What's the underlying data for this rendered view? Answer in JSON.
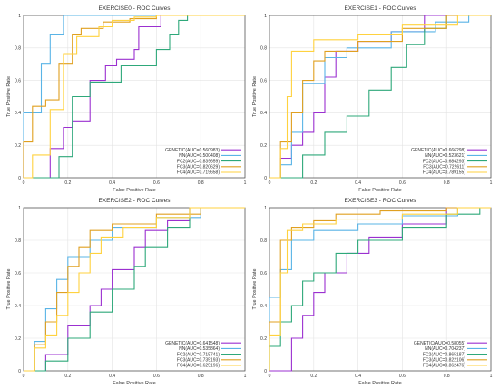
{
  "figure": {
    "background": "#ffffff"
  },
  "series_style": {
    "GENETIC": "#9b30d0",
    "NN": "#5ab4e6",
    "FC2": "#2ea87a",
    "FC3": "#e0a020",
    "FC4": "#ffd23f"
  },
  "chart_data": [
    {
      "type": "line",
      "title": "EXERCISE0 - ROC Curves",
      "xlabel": "False Positive Rate",
      "ylabel": "True Positive Rate",
      "xlim": [
        0,
        1
      ],
      "ylim": [
        0,
        1
      ],
      "xticks": [
        "0",
        "0.2",
        "0.4",
        "0.6",
        "0.8",
        "1"
      ],
      "yticks": [
        "0",
        "0.2",
        "0.4",
        "0.6",
        "0.8",
        "1"
      ],
      "grid": true,
      "legend_position": "bottom-right",
      "series": [
        {
          "name": "GENETIC(AUC=0.560983)",
          "x": [
            0,
            0.12,
            0.12,
            0.18,
            0.18,
            0.22,
            0.22,
            0.3,
            0.3,
            0.37,
            0.37,
            0.42,
            0.42,
            0.5,
            0.5,
            0.52,
            0.52,
            0.62,
            0.62,
            1
          ],
          "y": [
            0,
            0,
            0.18,
            0.18,
            0.31,
            0.31,
            0.35,
            0.35,
            0.6,
            0.6,
            0.69,
            0.69,
            0.73,
            0.73,
            0.79,
            0.79,
            0.93,
            0.93,
            1,
            1
          ]
        },
        {
          "name": "NN(AUC=0.500408)",
          "x": [
            0,
            0,
            0.08,
            0.08,
            0.12,
            0.12,
            0.18,
            0.18,
            1
          ],
          "y": [
            0,
            0.4,
            0.4,
            0.7,
            0.7,
            0.88,
            0.88,
            1,
            1
          ]
        },
        {
          "name": "FC2(AUC=0.839659)",
          "x": [
            0,
            0.16,
            0.16,
            0.22,
            0.22,
            0.3,
            0.3,
            0.44,
            0.44,
            0.6,
            0.6,
            0.66,
            0.66,
            0.7,
            0.7,
            0.74,
            0.74,
            1
          ],
          "y": [
            0,
            0,
            0.13,
            0.13,
            0.5,
            0.5,
            0.59,
            0.59,
            0.69,
            0.69,
            0.79,
            0.79,
            0.88,
            0.88,
            0.97,
            0.97,
            1,
            1
          ]
        },
        {
          "name": "FC3(AUC=0.820629)",
          "x": [
            0,
            0,
            0.04,
            0.04,
            0.1,
            0.1,
            0.16,
            0.16,
            0.22,
            0.22,
            0.26,
            0.26,
            0.36,
            0.36,
            0.48,
            0.48,
            0.6,
            0.6,
            1
          ],
          "y": [
            0,
            0.22,
            0.22,
            0.44,
            0.44,
            0.48,
            0.48,
            0.7,
            0.7,
            0.88,
            0.88,
            0.92,
            0.92,
            0.96,
            0.96,
            0.98,
            0.98,
            1,
            1
          ]
        },
        {
          "name": "FC4(AUC=0.719658)",
          "x": [
            0,
            0.04,
            0.04,
            0.12,
            0.12,
            0.18,
            0.18,
            0.24,
            0.24,
            0.34,
            0.34,
            0.4,
            0.4,
            0.5,
            0.5,
            0.6,
            0.6,
            1
          ],
          "y": [
            0,
            0,
            0.14,
            0.14,
            0.42,
            0.42,
            0.76,
            0.76,
            0.87,
            0.87,
            0.93,
            0.93,
            0.97,
            0.97,
            0.99,
            0.99,
            1,
            1
          ]
        }
      ]
    },
    {
      "type": "line",
      "title": "EXERCISE1 - ROC Curves",
      "xlabel": "False Positive Rate",
      "ylabel": "True Positive Rate",
      "xlim": [
        0,
        1
      ],
      "ylim": [
        0,
        1
      ],
      "xticks": [
        "0",
        "0.2",
        "0.4",
        "0.6",
        "0.8",
        "1"
      ],
      "yticks": [
        "0",
        "0.2",
        "0.4",
        "0.6",
        "0.8",
        "1"
      ],
      "grid": true,
      "legend_position": "bottom-right",
      "series": [
        {
          "name": "GENETIC(AUC=0.666298)",
          "x": [
            0,
            0.05,
            0.05,
            0.1,
            0.1,
            0.15,
            0.15,
            0.2,
            0.2,
            0.25,
            0.25,
            0.3,
            0.3,
            0.4,
            0.4,
            0.55,
            0.55,
            0.7,
            0.7,
            1
          ],
          "y": [
            0,
            0,
            0.12,
            0.12,
            0.2,
            0.2,
            0.28,
            0.28,
            0.4,
            0.4,
            0.62,
            0.62,
            0.78,
            0.78,
            0.84,
            0.84,
            0.9,
            0.9,
            1,
            1
          ]
        },
        {
          "name": "NN(AUC=0.523621)",
          "x": [
            0,
            0.05,
            0.05,
            0.1,
            0.1,
            0.15,
            0.15,
            0.25,
            0.25,
            0.35,
            0.35,
            0.55,
            0.55,
            0.75,
            0.75,
            0.9,
            0.9,
            1
          ],
          "y": [
            0,
            0,
            0.08,
            0.08,
            0.28,
            0.28,
            0.58,
            0.58,
            0.74,
            0.74,
            0.8,
            0.8,
            0.9,
            0.9,
            0.96,
            0.96,
            1,
            1
          ]
        },
        {
          "name": "FC2(AUC=0.684293)",
          "x": [
            0,
            0.15,
            0.15,
            0.25,
            0.25,
            0.35,
            0.35,
            0.45,
            0.45,
            0.55,
            0.55,
            0.62,
            0.62,
            0.7,
            0.7,
            0.8,
            0.8,
            1
          ],
          "y": [
            0,
            0,
            0.14,
            0.14,
            0.28,
            0.28,
            0.38,
            0.38,
            0.54,
            0.54,
            0.68,
            0.68,
            0.82,
            0.82,
            0.92,
            0.92,
            1,
            1
          ]
        },
        {
          "name": "FC3(AUC=0.722611)",
          "x": [
            0,
            0.05,
            0.05,
            0.1,
            0.1,
            0.15,
            0.15,
            0.2,
            0.2,
            0.25,
            0.25,
            0.4,
            0.4,
            0.6,
            0.6,
            0.8,
            0.8,
            1
          ],
          "y": [
            0,
            0,
            0.22,
            0.22,
            0.4,
            0.4,
            0.6,
            0.6,
            0.72,
            0.72,
            0.78,
            0.78,
            0.84,
            0.84,
            0.92,
            0.92,
            1,
            1
          ]
        },
        {
          "name": "FC4(AUC=0.789155)",
          "x": [
            0,
            0.05,
            0.05,
            0.08,
            0.08,
            0.1,
            0.1,
            0.2,
            0.2,
            0.4,
            0.4,
            0.6,
            0.6,
            0.85,
            0.85,
            1
          ],
          "y": [
            0,
            0,
            0.18,
            0.18,
            0.5,
            0.5,
            0.78,
            0.78,
            0.85,
            0.85,
            0.88,
            0.88,
            0.94,
            0.94,
            1,
            1
          ]
        }
      ]
    },
    {
      "type": "line",
      "title": "EXERCISE2 - ROC Curves",
      "xlabel": "False Positive Rate",
      "ylabel": "True Positive Rate",
      "xlim": [
        0,
        1
      ],
      "ylim": [
        0,
        1
      ],
      "xticks": [
        "0",
        "0.2",
        "0.4",
        "0.6",
        "0.8",
        "1"
      ],
      "yticks": [
        "0",
        "0.2",
        "0.4",
        "0.6",
        "0.8",
        "1"
      ],
      "grid": true,
      "legend_position": "bottom-right",
      "series": [
        {
          "name": "GENETIC(AUC=0.641548)",
          "x": [
            0,
            0.1,
            0.1,
            0.2,
            0.2,
            0.3,
            0.3,
            0.35,
            0.35,
            0.4,
            0.4,
            0.5,
            0.5,
            0.55,
            0.55,
            0.65,
            0.65,
            0.75,
            0.75,
            1
          ],
          "y": [
            0,
            0,
            0.1,
            0.1,
            0.28,
            0.28,
            0.4,
            0.4,
            0.5,
            0.5,
            0.62,
            0.62,
            0.76,
            0.76,
            0.86,
            0.86,
            0.92,
            0.92,
            1,
            1
          ]
        },
        {
          "name": "NN(AUC=0.535864)",
          "x": [
            0,
            0.05,
            0.05,
            0.1,
            0.1,
            0.15,
            0.15,
            0.2,
            0.2,
            0.3,
            0.3,
            0.4,
            0.4,
            0.6,
            0.6,
            0.8,
            0.8,
            1
          ],
          "y": [
            0,
            0,
            0.18,
            0.18,
            0.38,
            0.38,
            0.56,
            0.56,
            0.7,
            0.7,
            0.8,
            0.8,
            0.88,
            0.88,
            0.94,
            0.94,
            1,
            1
          ]
        },
        {
          "name": "FC2(AUC=0.715741)",
          "x": [
            0,
            0.1,
            0.1,
            0.2,
            0.2,
            0.3,
            0.3,
            0.4,
            0.4,
            0.5,
            0.5,
            0.55,
            0.55,
            0.65,
            0.65,
            0.75,
            0.75,
            1
          ],
          "y": [
            0,
            0,
            0.06,
            0.06,
            0.2,
            0.2,
            0.36,
            0.36,
            0.5,
            0.5,
            0.64,
            0.64,
            0.76,
            0.76,
            0.88,
            0.88,
            1,
            1
          ]
        },
        {
          "name": "FC3(AUC=0.735193)",
          "x": [
            0,
            0.05,
            0.05,
            0.1,
            0.1,
            0.15,
            0.15,
            0.2,
            0.2,
            0.25,
            0.25,
            0.3,
            0.3,
            0.4,
            0.4,
            0.6,
            0.6,
            0.8,
            0.8,
            1
          ],
          "y": [
            0,
            0,
            0.16,
            0.16,
            0.3,
            0.3,
            0.48,
            0.48,
            0.64,
            0.64,
            0.76,
            0.76,
            0.86,
            0.86,
            0.9,
            0.9,
            0.96,
            0.96,
            1,
            1
          ]
        },
        {
          "name": "FC4(AUC=0.625196)",
          "x": [
            0,
            0.05,
            0.05,
            0.1,
            0.1,
            0.15,
            0.15,
            0.2,
            0.2,
            0.25,
            0.25,
            0.3,
            0.3,
            0.35,
            0.35,
            0.45,
            0.45,
            0.6,
            0.6,
            0.75,
            0.75,
            1
          ],
          "y": [
            0,
            0,
            0.14,
            0.14,
            0.22,
            0.22,
            0.34,
            0.34,
            0.48,
            0.48,
            0.6,
            0.6,
            0.72,
            0.72,
            0.82,
            0.82,
            0.88,
            0.88,
            0.94,
            0.94,
            1,
            1
          ]
        }
      ]
    },
    {
      "type": "line",
      "title": "EXERCISE3 - ROC Curves",
      "xlabel": "False Positive Rate",
      "ylabel": "True Positive Rate",
      "xlim": [
        0,
        1
      ],
      "ylim": [
        0,
        1
      ],
      "xticks": [
        "0",
        "0.2",
        "0.4",
        "0.6",
        "0.8",
        "1"
      ],
      "yticks": [
        "0",
        "0.2",
        "0.4",
        "0.6",
        "0.8",
        "1"
      ],
      "grid": true,
      "legend_position": "bottom-right",
      "series": [
        {
          "name": "GENETIC(AUC=0.58055)",
          "x": [
            0,
            0.1,
            0.1,
            0.15,
            0.15,
            0.2,
            0.2,
            0.25,
            0.25,
            0.35,
            0.35,
            0.45,
            0.45,
            0.6,
            0.6,
            0.8,
            0.8,
            1
          ],
          "y": [
            0,
            0,
            0.2,
            0.2,
            0.34,
            0.34,
            0.48,
            0.48,
            0.6,
            0.6,
            0.72,
            0.72,
            0.82,
            0.82,
            0.9,
            0.9,
            1,
            1
          ]
        },
        {
          "name": "NN(AUC=0.704237)",
          "x": [
            0,
            0,
            0.05,
            0.05,
            0.1,
            0.1,
            0.2,
            0.2,
            0.4,
            0.4,
            0.6,
            0.6,
            0.85,
            0.85,
            1
          ],
          "y": [
            0,
            0.45,
            0.45,
            0.62,
            0.62,
            0.8,
            0.8,
            0.86,
            0.86,
            0.9,
            0.9,
            0.95,
            0.95,
            1,
            1
          ]
        },
        {
          "name": "FC2(AUC=0.865187)",
          "x": [
            0,
            0,
            0.05,
            0.05,
            0.1,
            0.1,
            0.15,
            0.15,
            0.2,
            0.2,
            0.3,
            0.3,
            0.4,
            0.4,
            0.6,
            0.6,
            0.8,
            0.8,
            0.95,
            0.95,
            1
          ],
          "y": [
            0,
            0.15,
            0.15,
            0.3,
            0.3,
            0.4,
            0.4,
            0.55,
            0.55,
            0.6,
            0.6,
            0.72,
            0.72,
            0.8,
            0.8,
            0.88,
            0.88,
            0.96,
            0.96,
            1,
            1
          ]
        },
        {
          "name": "FC3(AUC=0.822106)",
          "x": [
            0,
            0,
            0.05,
            0.05,
            0.1,
            0.1,
            0.2,
            0.2,
            0.3,
            0.3,
            0.5,
            0.5,
            0.8,
            0.8,
            1
          ],
          "y": [
            0,
            0.3,
            0.3,
            0.8,
            0.8,
            0.88,
            0.88,
            0.92,
            0.92,
            0.96,
            0.96,
            0.98,
            0.98,
            1,
            1
          ]
        },
        {
          "name": "FC4(AUC=0.862476)",
          "x": [
            0,
            0,
            0.05,
            0.05,
            0.08,
            0.08,
            0.15,
            0.15,
            0.3,
            0.3,
            0.6,
            0.6,
            0.85,
            0.85,
            1
          ],
          "y": [
            0,
            0.22,
            0.22,
            0.6,
            0.6,
            0.86,
            0.86,
            0.9,
            0.9,
            0.93,
            0.93,
            0.96,
            0.96,
            1,
            1
          ]
        }
      ]
    }
  ]
}
